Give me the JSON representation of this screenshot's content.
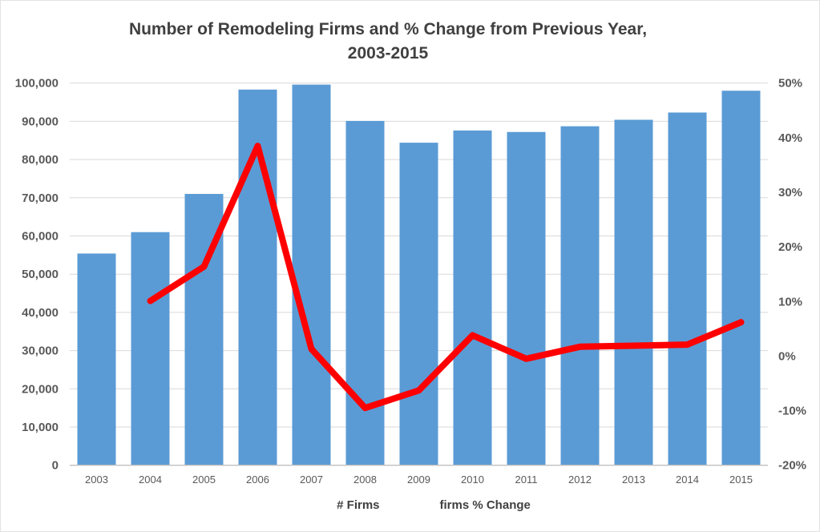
{
  "chart_data": {
    "type": "combo-bar-line",
    "title": "Number of Remodeling Firms and % Change from Previous Year,",
    "subtitle": "2003-2015",
    "categories": [
      "2003",
      "2004",
      "2005",
      "2006",
      "2007",
      "2008",
      "2009",
      "2010",
      "2011",
      "2012",
      "2013",
      "2014",
      "2015"
    ],
    "series": [
      {
        "name": "# Firms",
        "type": "bar",
        "axis": "left",
        "color": "#5B9BD5",
        "values": [
          55400,
          61000,
          71000,
          98300,
          99600,
          90100,
          84400,
          87600,
          87200,
          88700,
          90400,
          92300,
          98000
        ]
      },
      {
        "name": "firms % Change",
        "type": "line",
        "axis": "right",
        "color": "#FF0000",
        "values": [
          null,
          10.1,
          16.4,
          38.5,
          1.3,
          -9.5,
          -6.3,
          3.8,
          -0.5,
          1.7,
          1.9,
          2.1,
          6.2
        ]
      }
    ],
    "left_axis": {
      "min": 0,
      "max": 100000,
      "tick_values": [
        0,
        10000,
        20000,
        30000,
        40000,
        50000,
        60000,
        70000,
        80000,
        90000,
        100000
      ],
      "tick_labels": [
        "0",
        "10,000",
        "20,000",
        "30,000",
        "40,000",
        "50,000",
        "60,000",
        "70,000",
        "80,000",
        "90,000",
        "100,000"
      ]
    },
    "right_axis": {
      "min": -20,
      "max": 50,
      "tick_values": [
        -20,
        -10,
        0,
        10,
        20,
        30,
        40,
        50
      ],
      "tick_labels": [
        "-20%",
        "-10%",
        "0%",
        "10%",
        "20%",
        "30%",
        "40%",
        "50%"
      ]
    },
    "grid": true,
    "legend_position": "bottom"
  },
  "colors": {
    "bar_fill": "#5B9BD5",
    "line_stroke": "#FF0000",
    "gridline": "#D9D9D9",
    "axis_line": "#BFBFBF",
    "title_text": "#404040",
    "tick_text": "#595959"
  }
}
